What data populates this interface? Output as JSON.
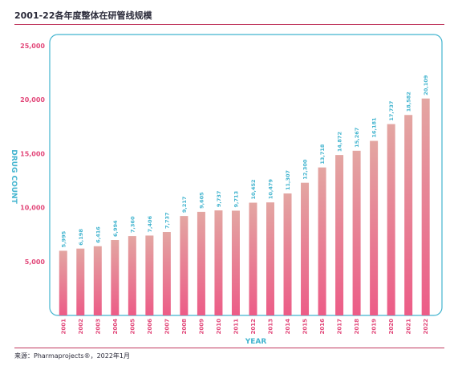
{
  "header": {
    "title": "2001-22各年度整体在研管线规模"
  },
  "footer": {
    "source": "来源：Pharmaprojects®，2022年1月"
  },
  "colors": {
    "bar_top": "#e3a6a2",
    "bar_bottom": "#ec5c87",
    "accent": "#e2487a",
    "label": "#42b4cf"
  },
  "chart_data": {
    "type": "bar",
    "title": "2001-22各年度整体在研管线规模",
    "xlabel": "YEAR",
    "ylabel": "DRUG COUNT",
    "ylim": [
      0,
      25000
    ],
    "yticks": [
      5000,
      10000,
      15000,
      20000,
      25000
    ],
    "ytick_labels": [
      "5,000",
      "10,000",
      "15,000",
      "20,000",
      "25,000"
    ],
    "grid": false,
    "categories": [
      "2001",
      "2002",
      "2003",
      "2004",
      "2005",
      "2006",
      "2007",
      "2008",
      "2009",
      "2010",
      "2011",
      "2012",
      "2013",
      "2014",
      "2015",
      "2016",
      "2017",
      "2018",
      "2019",
      "2020",
      "2021",
      "2022"
    ],
    "values": [
      5995,
      6198,
      6416,
      6994,
      7360,
      7406,
      7737,
      9217,
      9605,
      9737,
      9713,
      10452,
      10479,
      11307,
      12300,
      13718,
      14872,
      15267,
      16181,
      17737,
      18582,
      20109
    ],
    "value_labels": [
      "5,995",
      "6,198",
      "6,416",
      "6,994",
      "7,360",
      "7,406",
      "7,737",
      "9,217",
      "9,605",
      "9,737",
      "9,713",
      "10,452",
      "10,479",
      "11,307",
      "12,300",
      "13,718",
      "14,872",
      "15,267",
      "16,181",
      "17,737",
      "18,582",
      "20,109"
    ]
  }
}
